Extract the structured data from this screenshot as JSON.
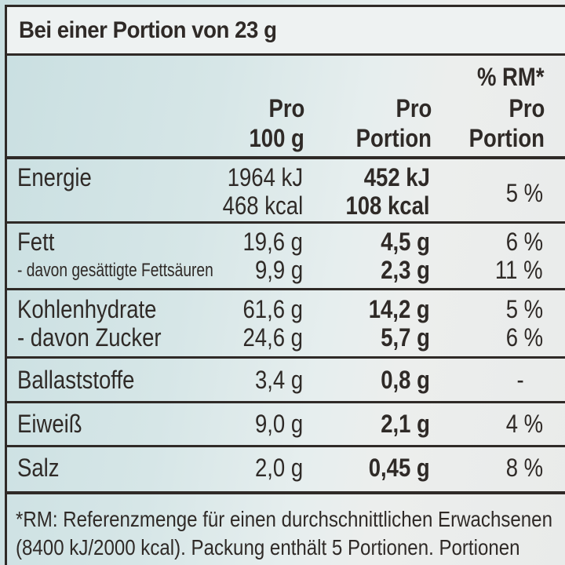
{
  "title": "Bei einer Portion von 23 g",
  "headers": {
    "col1": [
      "Pro",
      "100 g"
    ],
    "col2": [
      "Pro",
      "Portion"
    ],
    "col3": [
      "% RM*",
      "Pro",
      "Portion"
    ]
  },
  "rows": [
    {
      "label": "Energie",
      "per100": "1964 kJ",
      "per100b": "468 kcal",
      "portion": "452 kJ",
      "portionb": "108 kcal",
      "rm": "5 %"
    },
    {
      "label": "Fett",
      "sublabel": "- davon gesättigte Fettsäuren",
      "per100": "19,6 g",
      "per100b": "9,9 g",
      "portion": "4,5 g",
      "portionb": "2,3 g",
      "rm": "6 %",
      "rmb": "11 %"
    },
    {
      "label": "Kohlenhydrate",
      "sublabel": "- davon Zucker",
      "per100": "61,6 g",
      "per100b": "24,6 g",
      "portion": "14,2 g",
      "portionb": "5,7 g",
      "rm": "5 %",
      "rmb": "6 %"
    },
    {
      "label": "Ballaststoffe",
      "per100": "3,4 g",
      "portion": "0,8 g",
      "rm": "-"
    },
    {
      "label": "Eiweiß",
      "per100": "9,0 g",
      "portion": "2,1 g",
      "rm": "4 %"
    },
    {
      "label": "Salz",
      "per100": "2,0 g",
      "portion": "0,45 g",
      "rm": "8 %"
    }
  ],
  "footnote": [
    "*RM: Referenzmenge für einen durchschnittlichen Erwachsenen",
    "(8400 kJ/2000 kcal). Packung enthält 5 Portionen. Portionen"
  ]
}
